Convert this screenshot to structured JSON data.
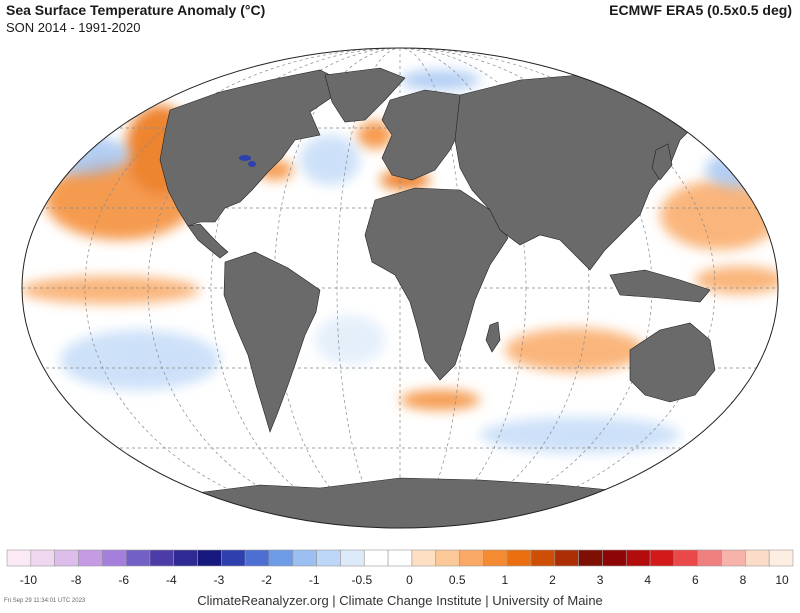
{
  "header": {
    "title": "Sea Surface Temperature Anomaly (°C)",
    "subtitle": "SON 2014 - 1991-2020",
    "dataset": "ECMWF ERA5 (0.5x0.5 deg)"
  },
  "legend": {
    "colors": [
      "#fbe9f6",
      "#f0d7f0",
      "#ddbdeb",
      "#c59be4",
      "#a47fdc",
      "#7360c4",
      "#4b3ca8",
      "#2f2a93",
      "#17187d",
      "#2d40ae",
      "#4d6ed2",
      "#6e9be6",
      "#9bbff1",
      "#bcd7f7",
      "#dceaf9",
      "#ffffff",
      "#ffffff",
      "#fde0c4",
      "#fcc898",
      "#f9a965",
      "#f48a32",
      "#eb6f0e",
      "#cf4e06",
      "#ab2e05",
      "#7d1003",
      "#8e0505",
      "#b30c0c",
      "#d4191a",
      "#ea4848",
      "#f07f7f",
      "#f7b3aa",
      "#fbdcc8",
      "#fdeee4"
    ],
    "labels": [
      "-10",
      "-8",
      "-6",
      "-4",
      "-3",
      "-2",
      "-1",
      "-0.5",
      "0",
      "0.5",
      "1",
      "2",
      "3",
      "4",
      "6",
      "8",
      "10"
    ]
  },
  "footer": {
    "timestamp": "Fri Sep 29 11:34:01 UTC 2023",
    "credits": "ClimateReanalyzer.org | Climate Change Institute | University of Maine"
  },
  "map": {
    "ocean_color": "#ffffff",
    "land_color": "#6a6a6a",
    "warm_color": "#f48a32",
    "cool_color": "#9bbff1"
  }
}
